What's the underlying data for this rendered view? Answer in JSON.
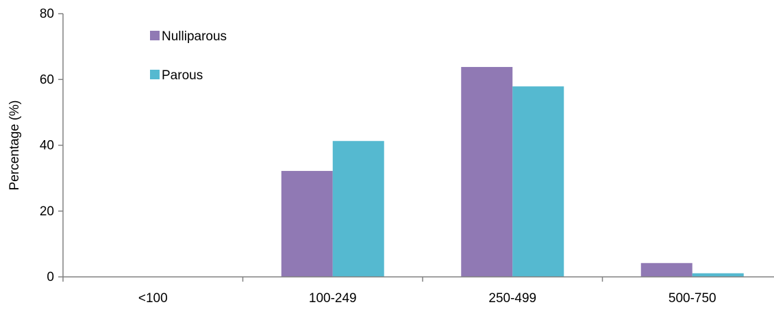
{
  "chart_data": {
    "type": "bar",
    "title": "",
    "xlabel": "",
    "ylabel": "Percentage (%)",
    "categories": [
      "<100",
      "100-249",
      "250-499",
      "500-750"
    ],
    "series": [
      {
        "name": "Nulliparous",
        "color": "#9079B4",
        "values": [
          0,
          32.2,
          63.8,
          4.2
        ]
      },
      {
        "name": "Parous",
        "color": "#55B9D0",
        "values": [
          0,
          41.3,
          57.9,
          1.1
        ]
      }
    ],
    "ylim": [
      0,
      80
    ],
    "yticks": [
      0,
      20,
      40,
      60,
      80
    ],
    "grid": false,
    "legend_position": "top-left"
  }
}
